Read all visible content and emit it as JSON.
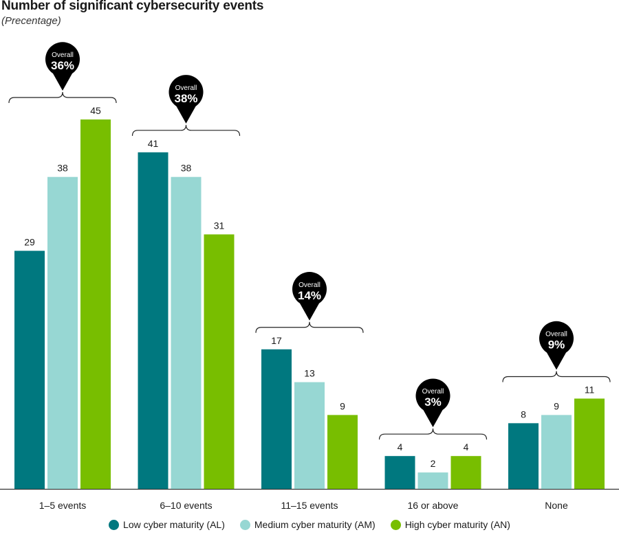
{
  "chart_data": {
    "type": "bar",
    "title": "Number of significant cybersecurity events",
    "subtitle": "(Precentage)",
    "categories": [
      "1–5 events",
      "6–10 events",
      "11–15 events",
      "16 or above",
      "None"
    ],
    "series": [
      {
        "name": "Low cyber maturity (AL)",
        "color": "#00787F",
        "values": [
          29,
          41,
          17,
          4,
          8
        ]
      },
      {
        "name": "Medium cyber maturity (AM)",
        "color": "#97D7D3",
        "values": [
          38,
          38,
          13,
          2,
          9
        ]
      },
      {
        "name": "High cyber maturity (AN)",
        "color": "#78BE00",
        "values": [
          45,
          31,
          9,
          4,
          11
        ]
      }
    ],
    "overall": {
      "label": "Overall",
      "values": [
        "36%",
        "38%",
        "14%",
        "3%",
        "9%"
      ]
    },
    "ylim": [
      0,
      45
    ],
    "xlabel": "",
    "ylabel": "",
    "legend_position": "bottom"
  }
}
